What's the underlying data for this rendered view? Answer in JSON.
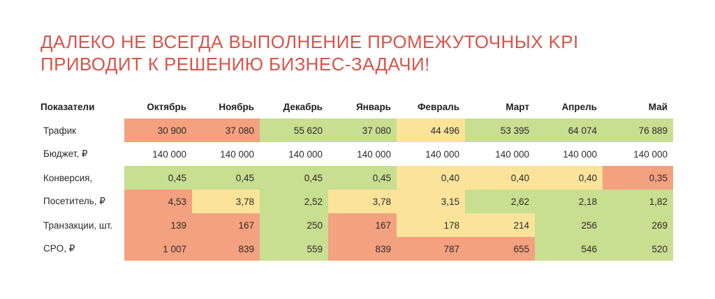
{
  "title": {
    "line1": "ДАЛЕКО НЕ ВСЕГДА ВЫПОЛНЕНИЕ ПРОМЕЖУТОЧНЫХ KPI",
    "line2": "ПРИВОДИТ К РЕШЕНИЮ БИЗНЕС-ЗАДАЧИ!"
  },
  "colors": {
    "red": "#f4a17f",
    "yellow": "#fbe39a",
    "green": "#c8de90",
    "title": "#d9534a"
  },
  "table": {
    "headers": [
      "Показатели",
      "Октябрь",
      "Ноябрь",
      "Декабрь",
      "Январь",
      "Февраль",
      "Март",
      "Апрель",
      "Май"
    ],
    "rows": [
      {
        "label": "Трафик",
        "values": [
          "30 900",
          "37 080",
          "55 620",
          "37 080",
          "44 496",
          "53 395",
          "64 074",
          "76 889"
        ],
        "colors": [
          "r",
          "r",
          "g",
          "g",
          "y",
          "g",
          "g",
          "g"
        ]
      },
      {
        "label": "Бюджет, ₽",
        "values": [
          "140 000",
          "140 000",
          "140 000",
          "140 000",
          "140 000",
          "140 000",
          "140 000",
          "140 000"
        ],
        "colors": [
          "w",
          "w",
          "w",
          "w",
          "w",
          "w",
          "w",
          "w"
        ]
      },
      {
        "label": "Конверсия,",
        "values": [
          "0,45",
          "0,45",
          "0,45",
          "0,45",
          "0,40",
          "0,40",
          "0,40",
          "0,35"
        ],
        "colors": [
          "g",
          "g",
          "g",
          "g",
          "y",
          "y",
          "y",
          "r"
        ]
      },
      {
        "label": "Посетитель, ₽",
        "values": [
          "4,53",
          "3,78",
          "2,52",
          "3,78",
          "3,15",
          "2,62",
          "2,18",
          "1,82"
        ],
        "colors": [
          "r",
          "y",
          "g",
          "y",
          "y",
          "g",
          "g",
          "g"
        ]
      },
      {
        "label": "Транзакции, шт.",
        "values": [
          "139",
          "167",
          "250",
          "167",
          "178",
          "214",
          "256",
          "269"
        ],
        "colors": [
          "r",
          "r",
          "g",
          "r",
          "y",
          "y",
          "g",
          "g"
        ]
      },
      {
        "label": "CPO, ₽",
        "values": [
          "1 007",
          "839",
          "559",
          "839",
          "787",
          "655",
          "546",
          "520"
        ],
        "colors": [
          "r",
          "r",
          "g",
          "r",
          "r",
          "r",
          "g",
          "g"
        ]
      }
    ]
  }
}
